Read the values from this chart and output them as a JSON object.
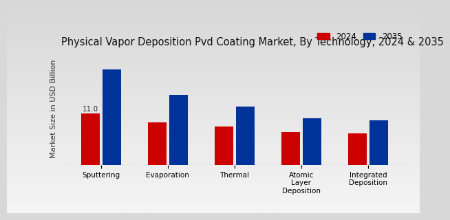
{
  "title": "Physical Vapor Deposition Pvd Coating Market, By Technology, 2024 & 2035",
  "ylabel": "Market Size in USD Billion",
  "categories": [
    "Sputtering",
    "Evaporation",
    "Thermal",
    "Atomic\nLayer\nDeposition",
    "Integrated\nDeposition"
  ],
  "values_2024": [
    11.0,
    9.2,
    8.2,
    7.0,
    6.8
  ],
  "values_2035": [
    20.5,
    15.0,
    12.5,
    10.0,
    9.5
  ],
  "color_2024": "#cc0000",
  "color_2035": "#003399",
  "annotation_text": "11.0",
  "annotation_bar": 0,
  "bg_top": "#d8d8d8",
  "bg_bottom": "#f5f5f5",
  "legend_labels": [
    "2024",
    "2035"
  ],
  "bar_width": 0.28,
  "ylim": [
    0,
    24
  ],
  "title_fontsize": 10.5,
  "axis_label_fontsize": 8,
  "tick_fontsize": 7.5,
  "legend_fontsize": 8.5
}
